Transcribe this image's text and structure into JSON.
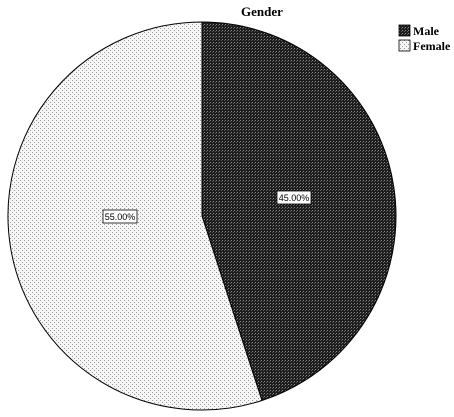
{
  "chart_data": {
    "type": "pie",
    "title": "Gender",
    "legend_position": "top-right",
    "categories": [
      "Male",
      "Female"
    ],
    "values": [
      45.0,
      55.0
    ],
    "data_labels": [
      "45.00%",
      "55.00%"
    ],
    "start_angle": "12 o'clock",
    "direction": "clockwise",
    "slice_styles": [
      {
        "fill": "#2a2a2a",
        "pattern": "dense dark crosshatch"
      },
      {
        "fill": "#f3f3f3",
        "pattern": "light dotted"
      }
    ]
  }
}
